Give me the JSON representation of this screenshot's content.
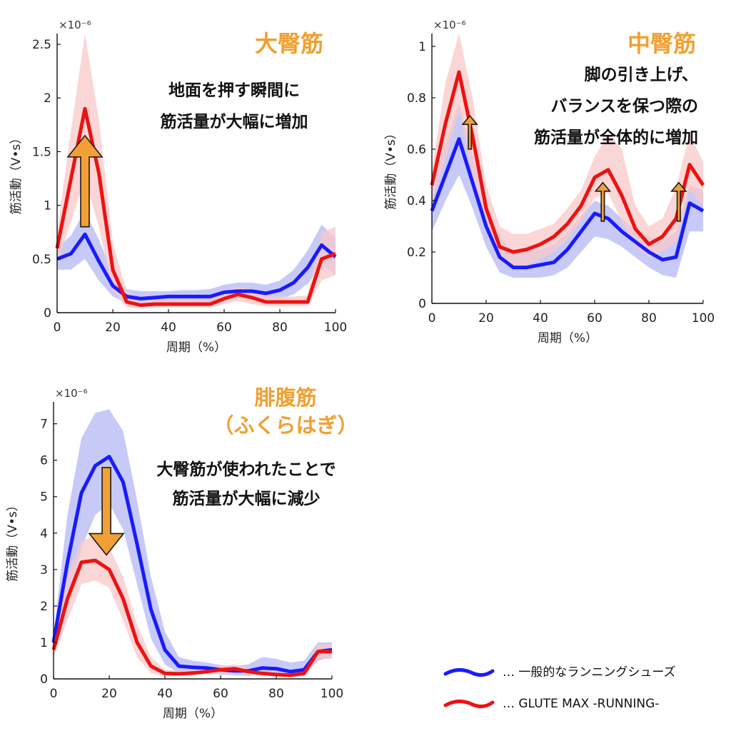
{
  "legend": [
    {
      "label": "… 一般的なランニングシューズ",
      "color": "#1a1aff"
    },
    {
      "label": "… GLUTE MAX -RUNNING-",
      "color": "#ee1111"
    }
  ],
  "colors": {
    "blue": "#1a1aff",
    "red": "#ee1111",
    "blue_band": "#b4b8f4",
    "red_band": "#f8c8c8",
    "arrow": "#f2a036",
    "title": "#f0a030"
  },
  "chart_data": [
    {
      "type": "line",
      "title": "大臀筋",
      "annotation": [
        "地面を押す瞬間に",
        "筋活量が大幅に増加"
      ],
      "xlabel": "周期（%）",
      "ylabel": "筋活動（V•s）",
      "y_exponent": "×10⁻⁶",
      "xlim": [
        0,
        100
      ],
      "ylim": [
        0,
        2.6
      ],
      "xticks": [
        0,
        20,
        40,
        60,
        80,
        100
      ],
      "yticks": [
        0,
        0.5,
        1,
        1.5,
        2,
        2.5
      ],
      "yticklabels": [
        "0",
        "0.5",
        "1",
        "1.5",
        "2",
        "2.5"
      ],
      "x": [
        0,
        5,
        10,
        15,
        20,
        25,
        30,
        35,
        40,
        45,
        50,
        55,
        60,
        65,
        70,
        75,
        80,
        85,
        90,
        95,
        100
      ],
      "series": [
        {
          "color": "blue",
          "values": [
            0.5,
            0.55,
            0.73,
            0.48,
            0.25,
            0.15,
            0.13,
            0.14,
            0.15,
            0.15,
            0.15,
            0.15,
            0.19,
            0.2,
            0.2,
            0.18,
            0.21,
            0.28,
            0.42,
            0.63,
            0.52
          ],
          "upper": [
            0.6,
            0.72,
            0.95,
            0.68,
            0.36,
            0.22,
            0.2,
            0.2,
            0.2,
            0.21,
            0.21,
            0.22,
            0.26,
            0.28,
            0.28,
            0.26,
            0.3,
            0.4,
            0.58,
            0.82,
            0.7
          ],
          "lower": [
            0.4,
            0.4,
            0.5,
            0.3,
            0.15,
            0.09,
            0.08,
            0.09,
            0.1,
            0.1,
            0.1,
            0.1,
            0.13,
            0.14,
            0.14,
            0.12,
            0.13,
            0.17,
            0.27,
            0.45,
            0.35
          ]
        },
        {
          "color": "red",
          "values": [
            0.6,
            1.25,
            1.9,
            1.3,
            0.4,
            0.1,
            0.07,
            0.08,
            0.08,
            0.08,
            0.08,
            0.08,
            0.13,
            0.17,
            0.14,
            0.1,
            0.1,
            0.1,
            0.1,
            0.5,
            0.55
          ],
          "upper": [
            0.75,
            1.7,
            2.6,
            1.8,
            0.65,
            0.2,
            0.12,
            0.12,
            0.12,
            0.12,
            0.12,
            0.12,
            0.2,
            0.24,
            0.22,
            0.16,
            0.15,
            0.15,
            0.16,
            0.75,
            0.8
          ],
          "lower": [
            0.45,
            0.85,
            1.25,
            0.8,
            0.2,
            0.05,
            0.04,
            0.05,
            0.05,
            0.05,
            0.05,
            0.05,
            0.08,
            0.11,
            0.08,
            0.06,
            0.06,
            0.06,
            0.06,
            0.3,
            0.35
          ]
        }
      ],
      "arrows": [
        {
          "x": 10,
          "from": 0.8,
          "to": 1.65,
          "size": "large"
        }
      ]
    },
    {
      "type": "line",
      "title": "中臀筋",
      "annotation": [
        "脚の引き上げ、",
        "バランスを保つ際の",
        "筋活量が全体的に増加"
      ],
      "xlabel": "周期（%）",
      "ylabel": "筋活動（V•s）",
      "y_exponent": "×10⁻⁶",
      "xlim": [
        0,
        100
      ],
      "ylim": [
        0,
        1.05
      ],
      "xticks": [
        0,
        20,
        40,
        60,
        80,
        100
      ],
      "yticks": [
        0,
        0.2,
        0.4,
        0.6,
        0.8,
        1
      ],
      "yticklabels": [
        "0",
        "0.2",
        "0.4",
        "0.6",
        "0.8",
        "1"
      ],
      "x": [
        0,
        5,
        10,
        15,
        20,
        25,
        30,
        35,
        40,
        45,
        50,
        55,
        60,
        65,
        70,
        75,
        80,
        85,
        90,
        95,
        100
      ],
      "series": [
        {
          "color": "blue",
          "values": [
            0.36,
            0.5,
            0.64,
            0.47,
            0.3,
            0.18,
            0.14,
            0.14,
            0.15,
            0.16,
            0.21,
            0.28,
            0.35,
            0.33,
            0.28,
            0.24,
            0.2,
            0.17,
            0.18,
            0.39,
            0.36
          ],
          "upper": [
            0.46,
            0.62,
            0.78,
            0.58,
            0.38,
            0.26,
            0.2,
            0.2,
            0.21,
            0.23,
            0.28,
            0.34,
            0.4,
            0.38,
            0.33,
            0.29,
            0.26,
            0.24,
            0.28,
            0.46,
            0.44
          ],
          "lower": [
            0.28,
            0.4,
            0.5,
            0.37,
            0.22,
            0.12,
            0.1,
            0.1,
            0.1,
            0.11,
            0.14,
            0.2,
            0.26,
            0.25,
            0.22,
            0.18,
            0.14,
            0.11,
            0.1,
            0.28,
            0.28
          ]
        },
        {
          "color": "red",
          "values": [
            0.46,
            0.7,
            0.9,
            0.65,
            0.37,
            0.22,
            0.2,
            0.21,
            0.23,
            0.26,
            0.31,
            0.38,
            0.49,
            0.52,
            0.42,
            0.29,
            0.23,
            0.26,
            0.33,
            0.54,
            0.46
          ],
          "upper": [
            0.52,
            0.86,
            1.05,
            0.8,
            0.46,
            0.3,
            0.27,
            0.27,
            0.29,
            0.31,
            0.37,
            0.44,
            0.57,
            0.66,
            0.6,
            0.38,
            0.3,
            0.33,
            0.45,
            0.66,
            0.55
          ],
          "lower": [
            0.4,
            0.56,
            0.75,
            0.5,
            0.28,
            0.16,
            0.14,
            0.15,
            0.17,
            0.2,
            0.25,
            0.32,
            0.41,
            0.43,
            0.32,
            0.22,
            0.18,
            0.2,
            0.24,
            0.44,
            0.38
          ]
        }
      ],
      "arrows": [
        {
          "x": 14,
          "from": 0.6,
          "to": 0.73,
          "size": "small"
        },
        {
          "x": 63,
          "from": 0.32,
          "to": 0.47,
          "size": "small"
        },
        {
          "x": 91,
          "from": 0.32,
          "to": 0.47,
          "size": "small"
        }
      ]
    },
    {
      "type": "line",
      "title": "腓腹筋",
      "subtitle": "（ふくらはぎ）",
      "annotation": [
        "大臀筋が使われたことで",
        "筋活量が大幅に減少"
      ],
      "xlabel": "周期（%）",
      "ylabel": "筋活動（V•s）",
      "y_exponent": "×10⁻⁶",
      "xlim": [
        0,
        100
      ],
      "ylim": [
        0,
        7.6
      ],
      "xticks": [
        0,
        20,
        40,
        60,
        80,
        100
      ],
      "yticks": [
        0,
        1,
        2,
        3,
        4,
        5,
        6,
        7
      ],
      "yticklabels": [
        "0",
        "1",
        "2",
        "3",
        "4",
        "5",
        "6",
        "7"
      ],
      "x": [
        0,
        5,
        10,
        15,
        20,
        25,
        30,
        35,
        40,
        45,
        50,
        55,
        60,
        65,
        70,
        75,
        80,
        85,
        90,
        95,
        100
      ],
      "series": [
        {
          "color": "blue",
          "values": [
            1.0,
            3.2,
            5.1,
            5.85,
            6.1,
            5.4,
            3.7,
            1.9,
            0.8,
            0.35,
            0.32,
            0.3,
            0.25,
            0.22,
            0.22,
            0.3,
            0.28,
            0.2,
            0.25,
            0.75,
            0.8
          ],
          "upper": [
            1.2,
            4.5,
            6.6,
            7.3,
            7.4,
            6.8,
            4.9,
            2.8,
            1.3,
            0.6,
            0.5,
            0.45,
            0.38,
            0.35,
            0.4,
            0.6,
            0.55,
            0.45,
            0.5,
            1.0,
            1.0
          ],
          "lower": [
            0.8,
            2.0,
            3.6,
            4.5,
            4.8,
            4.1,
            2.6,
            1.1,
            0.4,
            0.15,
            0.15,
            0.15,
            0.12,
            0.1,
            0.08,
            0.1,
            0.08,
            0.05,
            0.08,
            0.5,
            0.6
          ]
        },
        {
          "color": "red",
          "values": [
            0.8,
            2.2,
            3.2,
            3.25,
            3.0,
            2.2,
            1.0,
            0.35,
            0.15,
            0.14,
            0.16,
            0.2,
            0.25,
            0.28,
            0.2,
            0.15,
            0.12,
            0.1,
            0.15,
            0.75,
            0.75
          ],
          "upper": [
            1.0,
            2.8,
            3.8,
            3.9,
            3.6,
            2.8,
            1.5,
            0.6,
            0.25,
            0.22,
            0.24,
            0.28,
            0.35,
            0.4,
            0.3,
            0.22,
            0.18,
            0.16,
            0.25,
            0.95,
            0.95
          ],
          "lower": [
            0.6,
            1.6,
            2.6,
            2.7,
            2.5,
            1.6,
            0.6,
            0.15,
            0.08,
            0.08,
            0.1,
            0.12,
            0.15,
            0.16,
            0.12,
            0.09,
            0.07,
            0.05,
            0.08,
            0.55,
            0.55
          ]
        }
      ],
      "arrows": [
        {
          "x": 19,
          "from": 5.8,
          "to": 3.4,
          "size": "large"
        }
      ]
    }
  ]
}
